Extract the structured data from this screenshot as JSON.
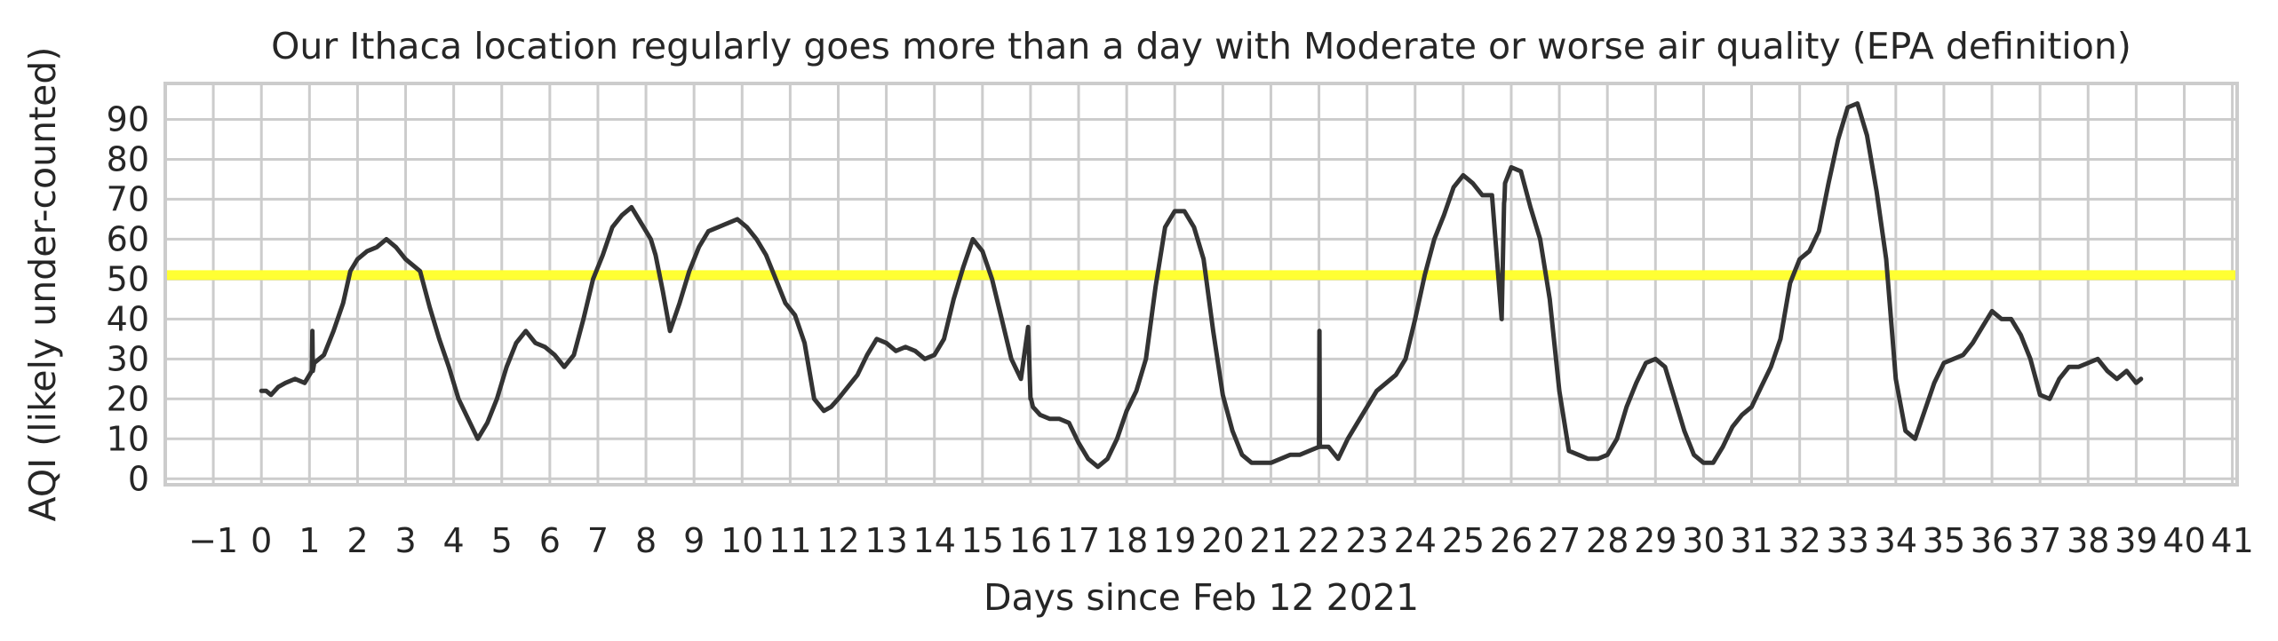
{
  "chart_data": {
    "type": "line",
    "title": "Our Ithaca location regularly goes more than a day with Moderate or worse air quality (EPA definition)",
    "xlabel": "Days since Feb 12 2021",
    "ylabel": "AQI (likely under-counted)",
    "xlim": [
      -2,
      41.1
    ],
    "ylim": [
      -1.5,
      99
    ],
    "x_ticks": [
      -1,
      0,
      1,
      2,
      3,
      4,
      5,
      6,
      7,
      8,
      9,
      10,
      11,
      12,
      13,
      14,
      15,
      16,
      17,
      18,
      19,
      20,
      21,
      22,
      23,
      24,
      25,
      26,
      27,
      28,
      29,
      30,
      31,
      32,
      33,
      34,
      35,
      36,
      37,
      38,
      39,
      40,
      41
    ],
    "y_ticks": [
      0,
      10,
      20,
      30,
      40,
      50,
      60,
      70,
      80,
      90
    ],
    "grid": true,
    "threshold": {
      "value": 51,
      "color": "#ffff33"
    },
    "line_color": "#333333",
    "series": [
      {
        "x": [
          0,
          0.1,
          0.2,
          0.35,
          0.5,
          0.7,
          0.9,
          1.05,
          1.06,
          1.07,
          1.1,
          1.3,
          1.5,
          1.7,
          1.85,
          2.0,
          2.2,
          2.4,
          2.6,
          2.8,
          3.0,
          3.2,
          3.3,
          3.5,
          3.7,
          3.9,
          4.1,
          4.3,
          4.5,
          4.7,
          4.9,
          5.1,
          5.3,
          5.5,
          5.7,
          5.9,
          6.1,
          6.3,
          6.5,
          6.7,
          6.9,
          7.1,
          7.3,
          7.5,
          7.7,
          7.9,
          8.1,
          8.2,
          8.35,
          8.5,
          8.7,
          8.9,
          9.1,
          9.3,
          9.5,
          9.7,
          9.9,
          10.1,
          10.3,
          10.5,
          10.7,
          10.9,
          11.1,
          11.3,
          11.5,
          11.7,
          11.85,
          12.0,
          12.2,
          12.4,
          12.6,
          12.8,
          13.0,
          13.2,
          13.4,
          13.6,
          13.8,
          14.0,
          14.2,
          14.4,
          14.6,
          14.8,
          15.0,
          15.2,
          15.4,
          15.6,
          15.8,
          15.95,
          16.0,
          16.01,
          16.05,
          16.2,
          16.4,
          16.6,
          16.8,
          17.0,
          17.2,
          17.4,
          17.6,
          17.8,
          18.0,
          18.2,
          18.4,
          18.6,
          18.8,
          19.0,
          19.2,
          19.4,
          19.6,
          19.8,
          20.0,
          20.2,
          20.4,
          20.6,
          20.8,
          21.0,
          21.2,
          21.4,
          21.6,
          21.8,
          22.0,
          22.01,
          22.02,
          22.2,
          22.4,
          22.6,
          22.8,
          23.0,
          23.2,
          23.4,
          23.6,
          23.8,
          24.0,
          24.2,
          24.4,
          24.6,
          24.8,
          25.0,
          25.2,
          25.4,
          25.6,
          25.8,
          25.85,
          25.86,
          25.87,
          26.0,
          26.2,
          26.4,
          26.6,
          26.8,
          27.0,
          27.2,
          27.4,
          27.6,
          27.8,
          28.0,
          28.2,
          28.4,
          28.6,
          28.8,
          29.0,
          29.2,
          29.4,
          29.6,
          29.8,
          30.0,
          30.2,
          30.4,
          30.6,
          30.8,
          31.0,
          31.2,
          31.4,
          31.6,
          31.8,
          32.0,
          32.2,
          32.4,
          32.6,
          32.8,
          33.0,
          33.2,
          33.4,
          33.6,
          33.8,
          34.0,
          34.2,
          34.4,
          34.6,
          34.8,
          35.0,
          35.2,
          35.4,
          35.6,
          35.8,
          36.0,
          36.2,
          36.4,
          36.6,
          36.8,
          37.0,
          37.2,
          37.4,
          37.6,
          37.8,
          38.0,
          38.2,
          38.4,
          38.6,
          38.8,
          39.0,
          39.1
        ],
        "y": [
          22,
          22,
          21,
          23,
          24,
          25,
          24,
          27,
          37,
          27,
          29,
          31,
          37,
          44,
          52,
          55,
          57,
          58,
          60,
          58,
          55,
          53,
          52,
          43,
          35,
          28,
          20,
          15,
          10,
          14,
          20,
          28,
          34,
          37,
          34,
          33,
          31,
          28,
          31,
          40,
          50,
          56,
          63,
          66,
          68,
          64,
          60,
          56,
          47,
          37,
          44,
          52,
          58,
          62,
          63,
          64,
          65,
          63,
          60,
          56,
          50,
          44,
          41,
          34,
          20,
          17,
          18,
          20,
          23,
          26,
          31,
          35,
          34,
          32,
          33,
          32,
          30,
          31,
          35,
          45,
          53,
          60,
          57,
          50,
          40,
          30,
          25,
          38,
          20,
          20,
          18,
          16,
          15,
          15,
          14,
          9,
          5,
          3,
          5,
          10,
          17,
          22,
          30,
          48,
          63,
          67,
          67,
          63,
          55,
          37,
          21,
          12,
          6,
          4,
          4,
          4,
          5,
          6,
          6,
          7,
          8,
          37,
          8,
          8,
          5,
          10,
          14,
          18,
          22,
          24,
          26,
          30,
          40,
          51,
          60,
          66,
          73,
          76,
          74,
          71,
          71,
          40,
          69,
          70,
          74,
          78,
          77,
          68,
          60,
          45,
          22,
          7,
          6,
          5,
          5,
          6,
          10,
          18,
          24,
          29,
          30,
          28,
          20,
          12,
          6,
          4,
          4,
          8,
          13,
          16,
          18,
          23,
          28,
          35,
          49,
          55,
          57,
          62,
          74,
          85,
          93,
          94,
          86,
          72,
          55,
          25,
          12,
          10,
          17,
          24,
          29,
          30,
          31,
          34,
          38,
          42,
          40,
          40,
          36,
          30,
          21,
          20,
          25,
          28,
          28,
          29,
          30,
          27,
          25,
          27,
          24,
          25
        ]
      }
    ]
  }
}
